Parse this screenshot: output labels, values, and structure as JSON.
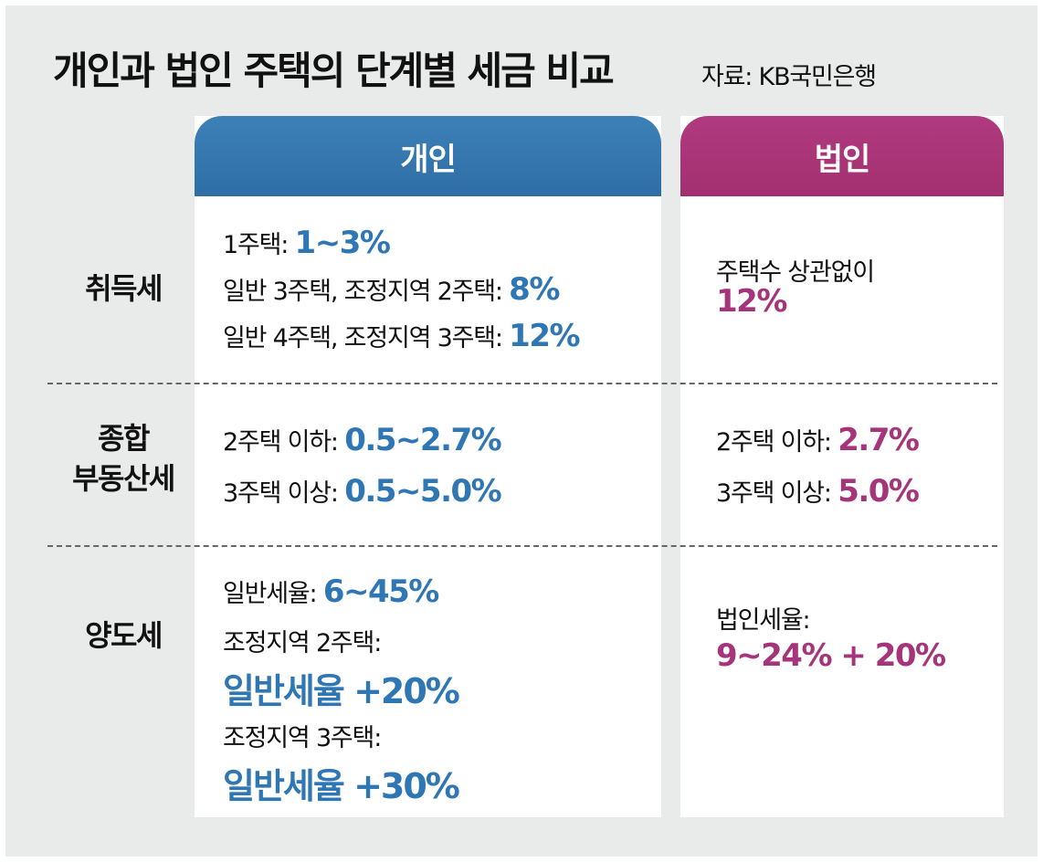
{
  "title": "개인과 법인 주택의 단계별 세금 비교",
  "source": "자료: KB국민은행",
  "headers": {
    "individual": "개인",
    "corporate": "법인"
  },
  "rows": {
    "acquisition": {
      "label": "취득세",
      "individual": [
        {
          "text": "1주택: ",
          "value": "1~3%"
        },
        {
          "text": "일반 3주택, 조정지역 2주택: ",
          "value": "8%"
        },
        {
          "text": "일반 4주택, 조정지역 3주택: ",
          "value": "12%"
        }
      ],
      "corporate": {
        "text": "주택수 상관없이",
        "value": "12%"
      }
    },
    "property": {
      "label_line1": "종합",
      "label_line2": "부동산세",
      "individual": [
        {
          "text": "2주택 이하: ",
          "value": "0.5~2.7%"
        },
        {
          "text": "3주택 이상: ",
          "value": "0.5~5.0%"
        }
      ],
      "corporate": [
        {
          "text": "2주택 이하: ",
          "value": "2.7%"
        },
        {
          "text": "3주택 이상: ",
          "value": "5.0%"
        }
      ]
    },
    "transfer": {
      "label": "양도세",
      "individual": {
        "general": {
          "text": "일반세율: ",
          "value": "6~45%"
        },
        "adjusted2": {
          "text": "조정지역 2주택:",
          "value": "일반세율 +20%"
        },
        "adjusted3": {
          "text": "조정지역 3주택:",
          "value": "일반세율 +30%"
        }
      },
      "corporate": {
        "text": "법인세율:",
        "value": "9~24% + 20%"
      }
    }
  }
}
